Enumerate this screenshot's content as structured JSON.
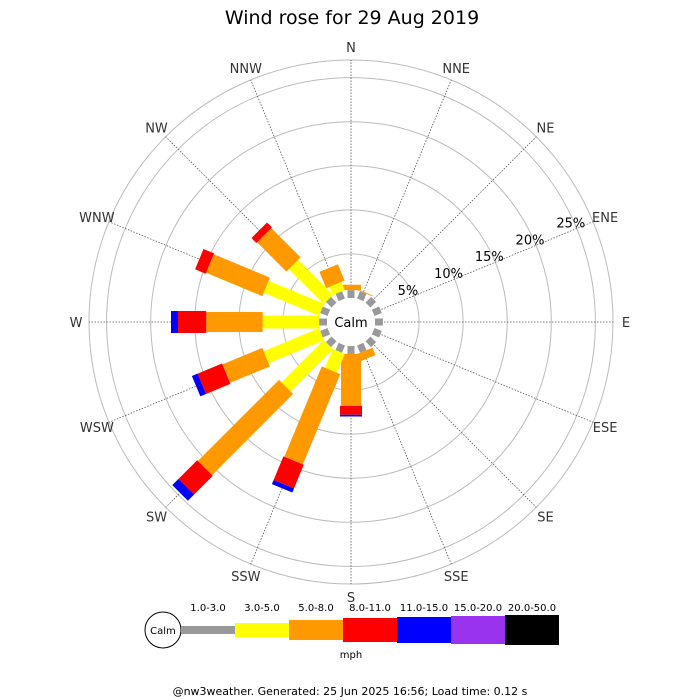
{
  "chart_data": {
    "type": "windrose",
    "title": "Wind rose for 29 Aug 2019",
    "directions": [
      "N",
      "NNE",
      "NE",
      "ENE",
      "E",
      "ESE",
      "SE",
      "SSE",
      "S",
      "SSW",
      "SW",
      "WSW",
      "W",
      "WNW",
      "NW",
      "NNW"
    ],
    "radial_ticks": [
      "5%",
      "10%",
      "15%",
      "20%",
      "25%"
    ],
    "radial_max": 27,
    "calm_label": "Calm",
    "unit": "mph",
    "speed_bins": [
      {
        "label": "1.0-3.0",
        "color": "#999999"
      },
      {
        "label": "3.0-5.0",
        "color": "#ffff00"
      },
      {
        "label": "5.0-8.0",
        "color": "#ff9900"
      },
      {
        "label": "8.0-11.0",
        "color": "#ff0000"
      },
      {
        "label": "11.0-15.0",
        "color": "#0000ff"
      },
      {
        "label": "15.0-20.0",
        "color": "#9933ee"
      },
      {
        "label": "20.0-50.0",
        "color": "#000000"
      }
    ],
    "cumulative_percent": [
      [
        0.9,
        0.9,
        1.5,
        1.5,
        1.5,
        1.5,
        1.5
      ],
      [
        0.9,
        0.9,
        1.0,
        1.0,
        1.0,
        1.0,
        1.0
      ],
      [
        0.9,
        0.9,
        0.9,
        0.9,
        0.9,
        0.9,
        0.9
      ],
      [
        0.9,
        0.9,
        0.9,
        0.9,
        0.9,
        0.9,
        0.9
      ],
      [
        0.9,
        0.9,
        0.9,
        0.9,
        0.9,
        0.9,
        0.9
      ],
      [
        0.9,
        0.9,
        0.9,
        0.9,
        0.9,
        0.9,
        0.9
      ],
      [
        0.9,
        0.9,
        0.9,
        0.9,
        0.9,
        0.9,
        0.9
      ],
      [
        0.9,
        0.9,
        1.8,
        1.8,
        1.8,
        1.8,
        1.8
      ],
      [
        0.9,
        0.9,
        6.8,
        7.8,
        8.0,
        8.0,
        8.0
      ],
      [
        0.9,
        3.2,
        14.3,
        17.2,
        17.7,
        17.7,
        17.7
      ],
      [
        0.9,
        7.7,
        20.7,
        23.7,
        24.7,
        24.7,
        24.7
      ],
      [
        0.9,
        7.7,
        12.6,
        15.6,
        16.3,
        16.3,
        16.3
      ],
      [
        0.9,
        7.3,
        13.7,
        16.9,
        17.7,
        17.7,
        17.7
      ],
      [
        0.9,
        7.7,
        14.6,
        15.9,
        15.9,
        15.9,
        15.9
      ],
      [
        0.9,
        6.5,
        11.2,
        12.0,
        12.0,
        12.0,
        12.0
      ],
      [
        0.9,
        1.9,
        3.9,
        3.9,
        3.9,
        3.9,
        3.9
      ]
    ],
    "grid": true
  },
  "footer": "@nw3weather. Generated: 25 Jun 2025 16:56; Load time: 0.12 s"
}
